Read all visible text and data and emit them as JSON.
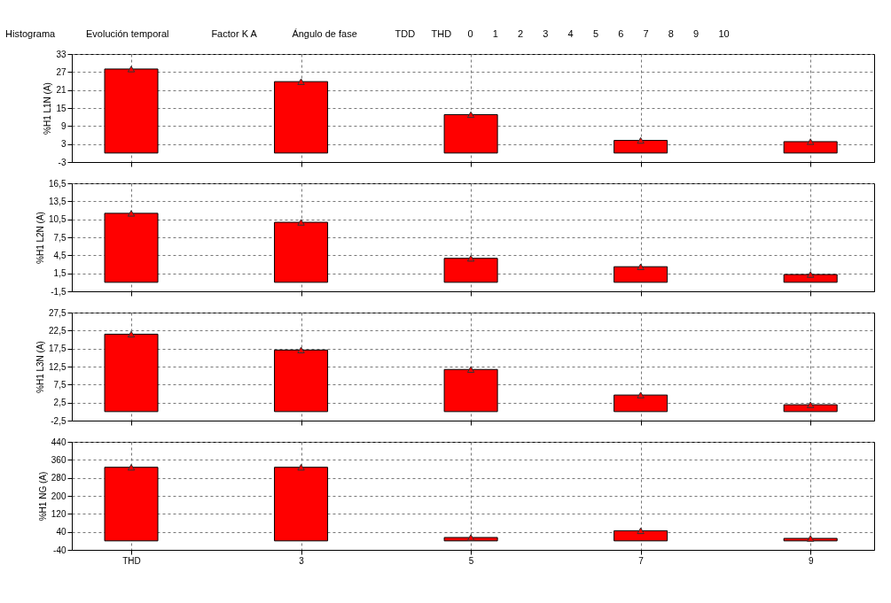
{
  "chart_data": [
    {
      "type": "bar",
      "ylabel": "%H1 L1N (A)",
      "annotations": [
        "Histograma",
        "Evolución temporal",
        "Factor K A",
        "Ángulo de fase",
        "TDD",
        "THD",
        "0",
        "1",
        "2",
        "3",
        "4",
        "5",
        "6",
        "7",
        "8",
        "9",
        "10"
      ],
      "x": [
        1,
        3,
        5,
        7,
        9
      ],
      "series": [
        {
          "color": "#ff0000",
          "values": [
            28,
            23.8,
            12.8,
            4.2,
            3.8
          ]
        },
        {
          "type": "scatter",
          "marker": "triangle",
          "color": "#ff0000",
          "values": [
            28,
            23.8,
            12.8,
            4.2,
            3.8
          ]
        }
      ],
      "grid": true,
      "xlim": [
        0.3,
        9.75
      ],
      "xticks": [
        1,
        3,
        5,
        7,
        9
      ],
      "ylim": [
        -3,
        33
      ],
      "yticks": [
        -3,
        3,
        9,
        15,
        21,
        27,
        33
      ],
      "tick_labels": "y"
    },
    {
      "type": "bar",
      "ylabel": "%H1 L2N (A)",
      "x": [
        1,
        3,
        5,
        7,
        9
      ],
      "series": [
        {
          "color": "#ff0000",
          "values": [
            11.5,
            10.0,
            4.0,
            2.6,
            1.3
          ]
        },
        {
          "type": "scatter",
          "marker": "triangle",
          "color": "#ff0000",
          "values": [
            11.5,
            10.0,
            4.0,
            2.6,
            1.3
          ]
        }
      ],
      "grid": true,
      "xlim": [
        0.3,
        9.75
      ],
      "xticks": [
        1,
        3,
        5,
        7,
        9
      ],
      "ylim": [
        -1.5,
        16.5
      ],
      "yticks": [
        {
          "value": -1.5,
          "label": "-1,5"
        },
        {
          "value": 1.5,
          "label": "1,5"
        },
        {
          "value": 4.5,
          "label": "4,5"
        },
        {
          "value": 7.5,
          "label": "7,5"
        },
        {
          "value": 10.5,
          "label": "10,5"
        },
        {
          "value": 13.5,
          "label": "13,5"
        },
        {
          "value": 16.5,
          "label": "16,5"
        }
      ],
      "tick_labels": "y"
    },
    {
      "type": "bar",
      "ylabel": "%H1 L3N (A)",
      "x": [
        1,
        3,
        5,
        7,
        9
      ],
      "series": [
        {
          "color": "#ff0000",
          "values": [
            21.5,
            17.1,
            11.7,
            4.6,
            1.9
          ]
        },
        {
          "type": "scatter",
          "marker": "triangle",
          "color": "#ff0000",
          "values": [
            21.5,
            17.1,
            11.7,
            4.6,
            1.9
          ]
        }
      ],
      "grid": true,
      "xlim": [
        0.3,
        9.75
      ],
      "xticks": [
        1,
        3,
        5,
        7,
        9
      ],
      "ylim": [
        -2.5,
        27.5
      ],
      "yticks": [
        {
          "value": -2.5,
          "label": "-2,5"
        },
        {
          "value": 2.5,
          "label": "2,5"
        },
        {
          "value": 7.5,
          "label": "7,5"
        },
        {
          "value": 12.5,
          "label": "12,5"
        },
        {
          "value": 17.5,
          "label": "17,5"
        },
        {
          "value": 22.5,
          "label": "22,5"
        },
        {
          "value": 27.5,
          "label": "27,5"
        }
      ],
      "tick_labels": "y"
    },
    {
      "type": "bar",
      "ylabel": "%H1 NG (A)",
      "x": [
        1,
        3,
        5,
        7,
        9
      ],
      "series": [
        {
          "color": "#ff0000",
          "values": [
            327,
            327,
            15,
            45,
            11
          ]
        },
        {
          "type": "scatter",
          "marker": "triangle",
          "color": "#ff0000",
          "values": [
            327,
            327,
            15,
            45,
            11
          ]
        }
      ],
      "grid": true,
      "xlim": [
        0.3,
        9.75
      ],
      "xticks": [
        {
          "value": 1,
          "label": "THD"
        },
        3,
        5,
        7,
        9
      ],
      "ylim": [
        -40,
        440
      ],
      "yticks": [
        -40,
        40,
        120,
        200,
        280,
        360,
        440
      ]
    }
  ]
}
